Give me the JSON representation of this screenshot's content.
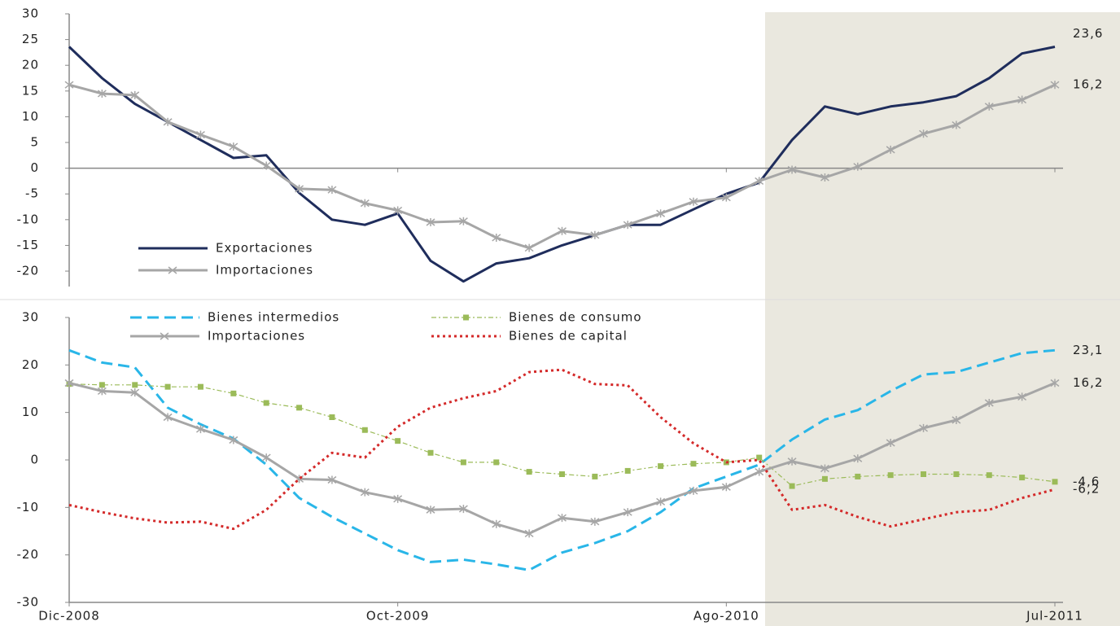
{
  "chart_data": [
    {
      "type": "line",
      "categories": [
        null,
        null,
        null,
        null,
        null,
        null,
        null,
        null,
        null,
        null,
        null,
        null,
        null,
        null,
        null,
        null,
        null,
        null,
        null,
        null,
        null,
        null,
        null,
        null,
        null,
        null,
        null,
        null,
        null,
        null,
        null
      ],
      "ylim": [
        -23,
        30
      ],
      "yticks": [
        30,
        25,
        20,
        15,
        10,
        5,
        0,
        -5,
        -10,
        -15,
        -20
      ],
      "legend": "lower left",
      "series": [
        {
          "name": "Exportaciones",
          "color": "#1f2d5c",
          "line_style": "solid",
          "marker": "none",
          "values": [
            23.6,
            17.5,
            12.5,
            9,
            5.5,
            2,
            2.5,
            -4.8,
            -10,
            -11,
            -8.8,
            -18,
            -22,
            -18.5,
            -17.5,
            -15,
            -13,
            -11,
            -11,
            -8,
            -5,
            -2.8,
            5.5,
            12,
            10.5,
            12,
            12.8,
            14,
            17.5,
            22.3,
            23.6
          ],
          "value_labels": [
            null,
            null,
            null,
            null,
            null,
            null,
            null,
            null,
            null,
            null,
            null,
            null,
            null,
            null,
            null,
            null,
            null,
            null,
            null,
            null,
            null,
            null,
            null,
            null,
            null,
            null,
            null,
            null,
            null,
            null,
            "23,6"
          ]
        },
        {
          "name": "Importaciones",
          "color": "#a6a6a6",
          "line_style": "solid",
          "marker": "x",
          "values": [
            16.2,
            14.5,
            14.2,
            9,
            6.5,
            4.2,
            0.5,
            -4,
            -4.2,
            -6.8,
            -8.2,
            -10.5,
            -10.3,
            -13.5,
            -15.5,
            -12.2,
            -13,
            -11,
            -8.8,
            -6.5,
            -5.7,
            -2.5,
            -0.3,
            -1.8,
            0.3,
            3.6,
            6.7,
            8.4,
            12,
            13.3,
            16.2
          ],
          "value_labels": [
            null,
            null,
            null,
            null,
            null,
            null,
            null,
            null,
            null,
            null,
            null,
            null,
            null,
            null,
            null,
            null,
            null,
            null,
            null,
            null,
            null,
            null,
            null,
            null,
            null,
            null,
            null,
            null,
            null,
            null,
            "16,2"
          ]
        }
      ]
    },
    {
      "type": "line",
      "categories": [
        "Dic-2008",
        null,
        null,
        null,
        null,
        null,
        null,
        null,
        null,
        null,
        "Oct-2009",
        null,
        null,
        null,
        null,
        null,
        null,
        null,
        null,
        null,
        "Ago-2010",
        null,
        null,
        null,
        null,
        null,
        null,
        null,
        null,
        null,
        "Jul-2011"
      ],
      "ylim": [
        -30,
        30
      ],
      "yticks": [
        30,
        20,
        10,
        0,
        -10,
        -20,
        -30
      ],
      "legend": "upper left",
      "series": [
        {
          "name": "Bienes intermedios",
          "color": "#29b6e8",
          "line_style": "dashed",
          "marker": "none",
          "values": [
            23.1,
            20.5,
            19.5,
            11,
            7.5,
            4.5,
            -1,
            -8,
            -12,
            -15.5,
            -19,
            -21.5,
            -21,
            -22,
            -23.2,
            -19.5,
            -17.5,
            -15,
            -11,
            -6,
            -3.5,
            -1,
            4.3,
            8.5,
            10.5,
            14.5,
            18,
            18.5,
            20.5,
            22.5,
            23.1
          ],
          "value_labels": [
            null,
            null,
            null,
            null,
            null,
            null,
            null,
            null,
            null,
            null,
            null,
            null,
            null,
            null,
            null,
            null,
            null,
            null,
            null,
            null,
            null,
            null,
            null,
            null,
            null,
            null,
            null,
            null,
            null,
            null,
            "23,1"
          ]
        },
        {
          "name": "Bienes de consumo",
          "color": "#9bbb59",
          "line_style": "dashdot",
          "marker": "square",
          "values": [
            16,
            15.8,
            15.8,
            15.4,
            15.4,
            14,
            12,
            11,
            9,
            6.3,
            4,
            1.5,
            -0.5,
            -0.5,
            -2.5,
            -3,
            -3.5,
            -2.3,
            -1.3,
            -0.8,
            -0.5,
            0.5,
            -5.5,
            -4,
            -3.5,
            -3.2,
            -3,
            -3,
            -3.2,
            -3.7,
            -4.6
          ],
          "value_labels": [
            null,
            null,
            null,
            null,
            null,
            null,
            null,
            null,
            null,
            null,
            null,
            null,
            null,
            null,
            null,
            null,
            null,
            null,
            null,
            null,
            null,
            null,
            null,
            null,
            null,
            null,
            null,
            null,
            null,
            null,
            "-4,6"
          ]
        },
        {
          "name": "Importaciones",
          "color": "#a6a6a6",
          "line_style": "solid",
          "marker": "x",
          "values": [
            16.2,
            14.5,
            14.2,
            9,
            6.5,
            4.2,
            0.5,
            -4,
            -4.2,
            -6.8,
            -8.2,
            -10.5,
            -10.3,
            -13.5,
            -15.5,
            -12.2,
            -13,
            -11,
            -8.8,
            -6.5,
            -5.7,
            -2.5,
            -0.3,
            -1.8,
            0.3,
            3.6,
            6.7,
            8.4,
            12,
            13.3,
            16.2
          ],
          "value_labels": [
            null,
            null,
            null,
            null,
            null,
            null,
            null,
            null,
            null,
            null,
            null,
            null,
            null,
            null,
            null,
            null,
            null,
            null,
            null,
            null,
            null,
            null,
            null,
            null,
            null,
            null,
            null,
            null,
            null,
            null,
            "16,2"
          ]
        },
        {
          "name": "Bienes de capital",
          "color": "#d42a2a",
          "line_style": "dotted",
          "marker": "none",
          "values": [
            -9.5,
            -11,
            -12.3,
            -13.2,
            -13,
            -14.5,
            -10.5,
            -4,
            1.5,
            0.5,
            7,
            11,
            13,
            14.5,
            18.5,
            19,
            16,
            15.7,
            9,
            3.5,
            -0.5,
            0,
            -10.5,
            -9.5,
            -12,
            -14,
            -12.5,
            -11,
            -10.5,
            -8,
            -6.2
          ],
          "value_labels": [
            null,
            null,
            null,
            null,
            null,
            null,
            null,
            null,
            null,
            null,
            null,
            null,
            null,
            null,
            null,
            null,
            null,
            null,
            null,
            null,
            null,
            null,
            null,
            null,
            null,
            null,
            null,
            null,
            null,
            null,
            "-6,2"
          ]
        }
      ]
    }
  ]
}
